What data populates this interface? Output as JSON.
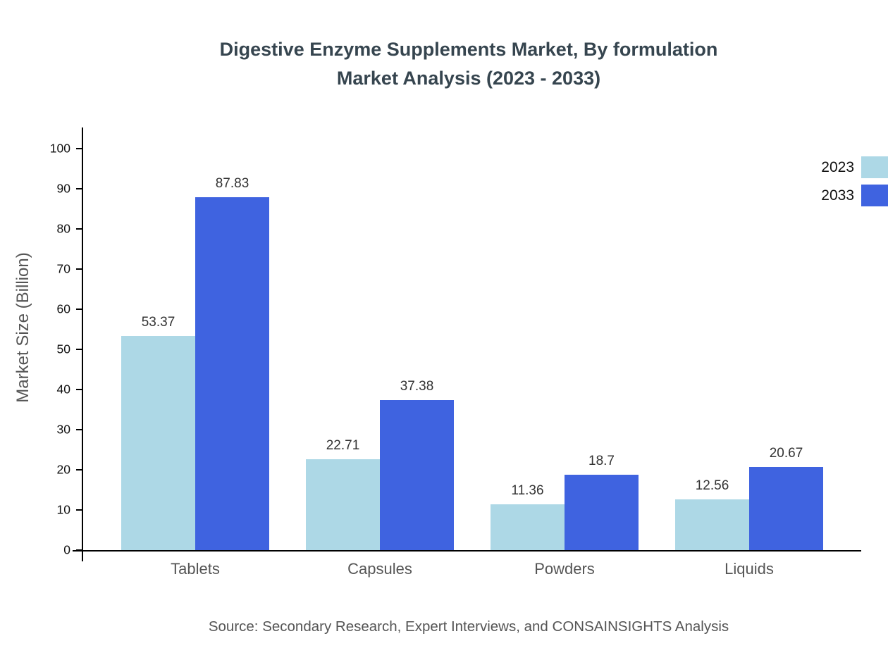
{
  "title": {
    "line1": "Digestive Enzyme Supplements Market, By formulation",
    "line2": "Market Analysis (2023 - 2033)"
  },
  "source": "Source: Secondary Research, Expert Interviews, and CONSAINSIGHTS Analysis",
  "chart_data": {
    "type": "bar",
    "title": "Digestive Enzyme Supplements Market, By formulation Market Analysis (2023 - 2033)",
    "xlabel": "",
    "ylabel": "Market Size (Billion)",
    "ylim": [
      0,
      100
    ],
    "yticks": [
      0,
      10,
      20,
      30,
      40,
      50,
      60,
      70,
      80,
      90,
      100
    ],
    "grid": false,
    "legend_position": "top-right",
    "categories": [
      "Tablets",
      "Capsules",
      "Powders",
      "Liquids"
    ],
    "series": [
      {
        "name": "2023",
        "color": "#add8e6",
        "values": [
          53.37,
          22.71,
          11.36,
          12.56
        ]
      },
      {
        "name": "2033",
        "color": "#3f63e0",
        "values": [
          87.83,
          37.38,
          18.7,
          20.67
        ]
      }
    ]
  }
}
